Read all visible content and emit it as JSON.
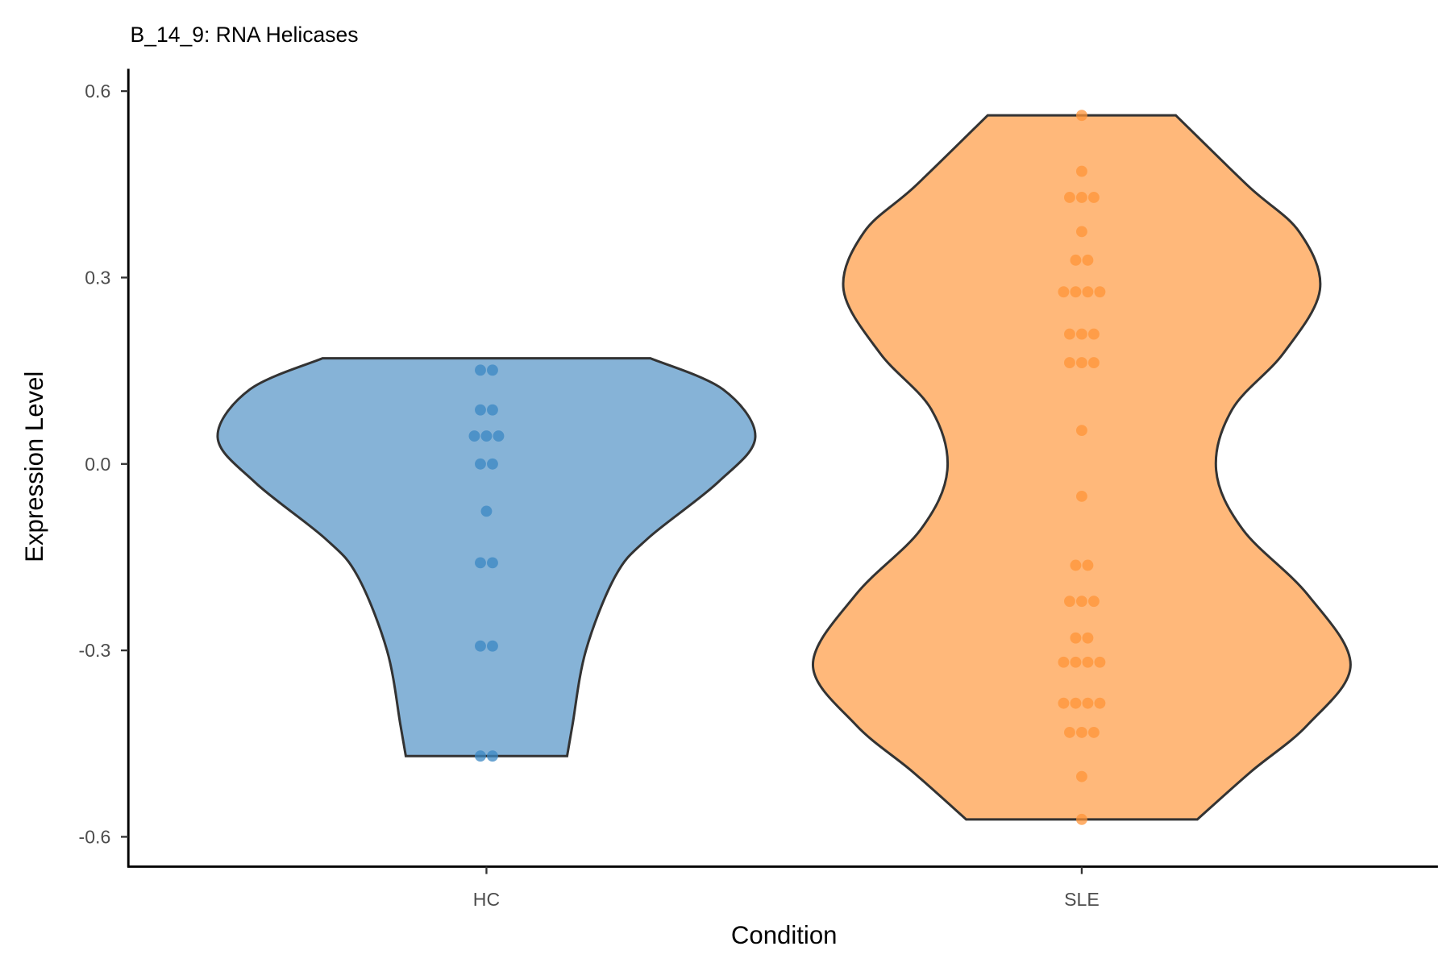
{
  "chart_data": {
    "type": "violin",
    "title": "B_14_9: RNA Helicases",
    "xlabel": "Condition",
    "ylabel": "Expression Level",
    "ylim": [
      -0.645,
      0.635
    ],
    "yticks": [
      0.6,
      0.3,
      0.0,
      -0.3,
      -0.6
    ],
    "ytick_labels": [
      "0.6",
      "0.3",
      "0.0",
      "-0.3",
      "-0.6"
    ],
    "categories": [
      "HC",
      "SLE"
    ],
    "series": [
      {
        "name": "HC",
        "fill": "#86b3d7",
        "point_color": "#3a87c3",
        "violin_profile": [
          [
            0.17,
            0.61
          ],
          [
            0.12,
            0.88
          ],
          [
            0.043,
            1.0
          ],
          [
            -0.03,
            0.86
          ],
          [
            -0.12,
            0.6
          ],
          [
            -0.18,
            0.48
          ],
          [
            -0.3,
            0.37
          ],
          [
            -0.42,
            0.32
          ],
          [
            -0.47,
            0.3
          ]
        ],
        "values": [
          0.151,
          0.151,
          0.087,
          0.087,
          0.045,
          0.045,
          0.045,
          0.0,
          0.0,
          -0.076,
          -0.159,
          -0.159,
          -0.293,
          -0.293,
          -0.47,
          -0.47
        ]
      },
      {
        "name": "SLE",
        "fill": "#ffb87a",
        "point_color": "#ff9438",
        "violin_profile": [
          [
            0.561,
            0.35
          ],
          [
            0.447,
            0.62
          ],
          [
            0.373,
            0.81
          ],
          [
            0.28,
            0.886
          ],
          [
            0.178,
            0.75
          ],
          [
            0.088,
            0.56
          ],
          [
            -0.01,
            0.5
          ],
          [
            -0.106,
            0.6
          ],
          [
            -0.21,
            0.84
          ],
          [
            -0.323,
            1.0
          ],
          [
            -0.42,
            0.84
          ],
          [
            -0.495,
            0.63
          ],
          [
            -0.572,
            0.43
          ]
        ],
        "values": [
          0.561,
          0.471,
          0.429,
          0.429,
          0.429,
          0.374,
          0.328,
          0.328,
          0.277,
          0.277,
          0.277,
          0.277,
          0.209,
          0.209,
          0.209,
          0.163,
          0.163,
          0.163,
          0.054,
          -0.052,
          -0.163,
          -0.163,
          -0.221,
          -0.221,
          -0.221,
          -0.28,
          -0.28,
          -0.319,
          -0.319,
          -0.319,
          -0.319,
          -0.385,
          -0.385,
          -0.385,
          -0.385,
          -0.432,
          -0.432,
          -0.432,
          -0.503,
          -0.572
        ]
      }
    ],
    "grid": false,
    "legend": "none"
  }
}
